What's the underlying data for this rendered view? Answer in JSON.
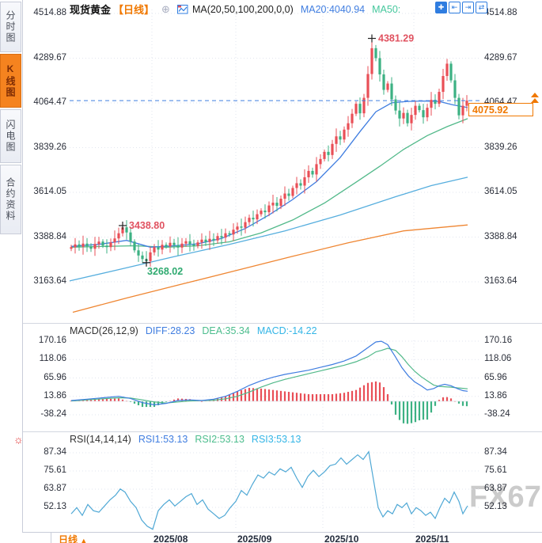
{
  "sidebar": {
    "tabs": [
      {
        "label": "分时图",
        "active": false
      },
      {
        "label": "K线图",
        "active": true
      },
      {
        "label": "闪电图",
        "active": false
      },
      {
        "label": "合约资料",
        "active": false
      }
    ]
  },
  "header": {
    "symbol": "现货黄金",
    "period_tag": "【日线】",
    "add_icon_glyph": "⊕",
    "ma_settings": "MA(20,50,100,200,0,0)",
    "ma20_label": "MA20:4040.94",
    "ma50_label": "MA50:",
    "toolbar_icons": [
      {
        "name": "crosshair-icon",
        "glyph": "✚"
      },
      {
        "name": "scale-left-icon",
        "glyph": "⇤"
      },
      {
        "name": "scale-right-icon",
        "glyph": "⇥"
      },
      {
        "name": "pan-icon",
        "glyph": "⇄"
      }
    ]
  },
  "price_axis": {
    "labels": [
      "4514.88",
      "4289.67",
      "4064.47",
      "3839.26",
      "3614.05",
      "3388.84",
      "3163.64"
    ]
  },
  "current_price_tag": {
    "value": "4075.92"
  },
  "annotations": {
    "peak_high": "4381.29",
    "local_high": "3438.80",
    "local_low": "3268.02"
  },
  "macd": {
    "title": "MACD(26,12,9)",
    "diff_label": "DIFF:28.23",
    "dea_label": "DEA:35.34",
    "macd_label": "MACD:-14.22",
    "axis_labels": [
      "170.16",
      "118.06",
      "65.96",
      "13.86",
      "-38.24"
    ]
  },
  "rsi": {
    "title": "RSI(14,14,14)",
    "rsi1_label": "RSI1:53.13",
    "rsi2_label": "RSI2:53.13",
    "rsi3_label": "RSI3:53.13",
    "axis_labels": [
      "87.34",
      "75.61",
      "63.87",
      "52.13"
    ]
  },
  "bottom": {
    "period_label": "日线",
    "arrow": "▲",
    "date_labels": [
      "2025/08",
      "2025/09",
      "2025/10",
      "2025/11"
    ]
  },
  "settings_icon_glyph": "☼",
  "watermark": "FX678",
  "colors": {
    "up_candle": "#e94f57",
    "down_candle": "#3cb183",
    "ma20": "#3f7de0",
    "ma50": "#52b98a",
    "ma100": "#56aede",
    "ma200": "#ef8632",
    "diff_line": "#3f7de0",
    "dea_line": "#52b98a",
    "rsi_line": "#4fa8d5",
    "accent_orange": "#f07800",
    "annotation_red": "#e05260",
    "annotation_green": "#2faa70",
    "grid": "#e2e6ef",
    "dashed_price_line": "#3f7de0"
  },
  "chart_data": {
    "type": "candlestick+indicators",
    "title": "现货黄金 日线",
    "x_tick_labels": [
      "2025/08",
      "2025/09",
      "2025/10",
      "2025/11"
    ],
    "x_gridlines": [
      192,
      298,
      408,
      523
    ],
    "main": {
      "ylim": [
        3163.64,
        4514.88
      ],
      "x_start": 90,
      "x_step": 5,
      "closes": [
        3338,
        3352,
        3340,
        3356,
        3342,
        3330,
        3354,
        3366,
        3346,
        3338,
        3362,
        3382,
        3408,
        3438,
        3412,
        3366,
        3322,
        3296,
        3278,
        3268,
        3312,
        3338,
        3326,
        3350,
        3342,
        3360,
        3348,
        3336,
        3356,
        3368,
        3352,
        3344,
        3362,
        3376,
        3364,
        3380,
        3372,
        3394,
        3386,
        3408,
        3402,
        3426,
        3442,
        3436,
        3464,
        3486,
        3478,
        3504,
        3522,
        3514,
        3548,
        3562,
        3546,
        3582,
        3608,
        3596,
        3636,
        3660,
        3648,
        3690,
        3722,
        3704,
        3756,
        3782,
        3818,
        3802,
        3858,
        3896,
        3880,
        3930,
        3962,
        4010,
        4060,
        4012,
        4090,
        4210,
        4340,
        4290,
        4208,
        4130,
        4162,
        4082,
        4026,
        3986,
        4014,
        3962,
        4004,
        4050,
        4028,
        3992,
        4040,
        4080,
        4060,
        4120,
        4200,
        4262,
        4178,
        4090,
        4002,
        4050,
        4075.92
      ],
      "marked_points": [
        {
          "index": 13,
          "kind": "high",
          "value": 3438.8,
          "label": "3438.80"
        },
        {
          "index": 19,
          "kind": "low",
          "value": 3268.02,
          "label": "3268.02"
        },
        {
          "index": 76,
          "kind": "high",
          "value": 4381.29,
          "label": "4381.29"
        }
      ],
      "current_price": 4075.92,
      "ma20": [
        [
          90,
          3342
        ],
        [
          125,
          3352
        ],
        [
          160,
          3372
        ],
        [
          190,
          3338
        ],
        [
          220,
          3345
        ],
        [
          250,
          3355
        ],
        [
          280,
          3382
        ],
        [
          310,
          3432
        ],
        [
          340,
          3500
        ],
        [
          370,
          3578
        ],
        [
          400,
          3668
        ],
        [
          430,
          3790
        ],
        [
          455,
          3920
        ],
        [
          475,
          4020
        ],
        [
          495,
          4065
        ],
        [
          515,
          4072
        ],
        [
          535,
          4074
        ],
        [
          555,
          4072
        ],
        [
          572,
          4055
        ],
        [
          591,
          4040.94
        ]
      ],
      "ma50": [
        [
          90,
          3338
        ],
        [
          130,
          3342
        ],
        [
          170,
          3345
        ],
        [
          210,
          3338
        ],
        [
          250,
          3345
        ],
        [
          290,
          3365
        ],
        [
          330,
          3410
        ],
        [
          370,
          3475
        ],
        [
          410,
          3560
        ],
        [
          450,
          3665
        ],
        [
          480,
          3745
        ],
        [
          510,
          3830
        ],
        [
          540,
          3900
        ],
        [
          565,
          3945
        ],
        [
          591,
          3985
        ]
      ],
      "ma100": [
        [
          88,
          3168
        ],
        [
          150,
          3225
        ],
        [
          220,
          3290
        ],
        [
          290,
          3352
        ],
        [
          360,
          3420
        ],
        [
          430,
          3500
        ],
        [
          500,
          3592
        ],
        [
          545,
          3648
        ],
        [
          591,
          3690
        ]
      ],
      "ma200": [
        [
          92,
          3010
        ],
        [
          160,
          3082
        ],
        [
          230,
          3152
        ],
        [
          300,
          3222
        ],
        [
          370,
          3292
        ],
        [
          440,
          3360
        ],
        [
          510,
          3420
        ],
        [
          591,
          3450
        ]
      ]
    },
    "macd": {
      "params": [
        26,
        12,
        9
      ],
      "diff_last": 28.23,
      "dea_last": 35.34,
      "macd_last": -14.22,
      "hist_rule": "2*(diff-dea)",
      "diff": [
        [
          90,
          2
        ],
        [
          110,
          6
        ],
        [
          130,
          10
        ],
        [
          150,
          14
        ],
        [
          165,
          8
        ],
        [
          180,
          -4
        ],
        [
          195,
          -10
        ],
        [
          210,
          -6
        ],
        [
          225,
          2
        ],
        [
          240,
          4
        ],
        [
          255,
          2
        ],
        [
          270,
          6
        ],
        [
          285,
          14
        ],
        [
          300,
          28
        ],
        [
          315,
          45
        ],
        [
          330,
          58
        ],
        [
          345,
          68
        ],
        [
          360,
          76
        ],
        [
          375,
          82
        ],
        [
          390,
          88
        ],
        [
          405,
          96
        ],
        [
          420,
          104
        ],
        [
          435,
          114
        ],
        [
          450,
          128
        ],
        [
          465,
          152
        ],
        [
          475,
          168
        ],
        [
          482,
          170
        ],
        [
          490,
          160
        ],
        [
          500,
          125
        ],
        [
          508,
          95
        ],
        [
          516,
          72
        ],
        [
          524,
          55
        ],
        [
          532,
          44
        ],
        [
          540,
          32
        ],
        [
          548,
          36
        ],
        [
          555,
          44
        ],
        [
          562,
          48
        ],
        [
          570,
          44
        ],
        [
          578,
          36
        ],
        [
          585,
          30
        ],
        [
          591,
          28.23
        ]
      ],
      "dea": [
        [
          90,
          1
        ],
        [
          110,
          4
        ],
        [
          130,
          7
        ],
        [
          150,
          10
        ],
        [
          165,
          9
        ],
        [
          180,
          4
        ],
        [
          195,
          -2
        ],
        [
          210,
          -5
        ],
        [
          225,
          -2
        ],
        [
          240,
          1
        ],
        [
          255,
          2
        ],
        [
          270,
          3
        ],
        [
          285,
          7
        ],
        [
          300,
          14
        ],
        [
          315,
          26
        ],
        [
          330,
          40
        ],
        [
          345,
          52
        ],
        [
          360,
          62
        ],
        [
          375,
          70
        ],
        [
          390,
          78
        ],
        [
          405,
          86
        ],
        [
          420,
          94
        ],
        [
          435,
          102
        ],
        [
          450,
          112
        ],
        [
          465,
          126
        ],
        [
          475,
          140
        ],
        [
          482,
          144
        ],
        [
          490,
          150
        ],
        [
          500,
          144
        ],
        [
          508,
          126
        ],
        [
          516,
          104
        ],
        [
          524,
          85
        ],
        [
          532,
          70
        ],
        [
          540,
          58
        ],
        [
          548,
          46
        ],
        [
          555,
          42
        ],
        [
          562,
          41
        ],
        [
          570,
          40
        ],
        [
          578,
          38
        ],
        [
          585,
          36.5
        ],
        [
          591,
          35.34
        ]
      ]
    },
    "rsi": {
      "last": [
        53.13,
        53.13,
        53.13
      ],
      "points": [
        [
          90,
          48
        ],
        [
          97,
          52
        ],
        [
          104,
          47
        ],
        [
          111,
          54
        ],
        [
          118,
          50
        ],
        [
          125,
          49
        ],
        [
          132,
          53
        ],
        [
          139,
          57
        ],
        [
          146,
          60
        ],
        [
          152,
          64
        ],
        [
          158,
          62
        ],
        [
          165,
          56
        ],
        [
          172,
          52
        ],
        [
          179,
          44
        ],
        [
          186,
          40
        ],
        [
          193,
          38
        ],
        [
          200,
          50
        ],
        [
          207,
          54
        ],
        [
          214,
          57
        ],
        [
          221,
          53
        ],
        [
          228,
          56
        ],
        [
          235,
          59
        ],
        [
          242,
          61
        ],
        [
          249,
          54
        ],
        [
          256,
          57
        ],
        [
          263,
          51
        ],
        [
          270,
          48
        ],
        [
          277,
          45
        ],
        [
          284,
          47
        ],
        [
          291,
          52
        ],
        [
          298,
          56
        ],
        [
          305,
          63
        ],
        [
          312,
          60
        ],
        [
          319,
          67
        ],
        [
          326,
          73
        ],
        [
          333,
          71
        ],
        [
          340,
          75
        ],
        [
          347,
          73
        ],
        [
          354,
          77
        ],
        [
          361,
          75
        ],
        [
          368,
          78
        ],
        [
          375,
          71
        ],
        [
          382,
          65
        ],
        [
          389,
          72
        ],
        [
          396,
          76
        ],
        [
          403,
          72
        ],
        [
          410,
          75
        ],
        [
          417,
          79
        ],
        [
          424,
          80
        ],
        [
          431,
          84
        ],
        [
          438,
          80
        ],
        [
          445,
          83
        ],
        [
          452,
          86
        ],
        [
          459,
          83
        ],
        [
          466,
          88
        ],
        [
          472,
          70
        ],
        [
          478,
          52
        ],
        [
          484,
          46
        ],
        [
          490,
          50
        ],
        [
          496,
          48
        ],
        [
          502,
          54
        ],
        [
          508,
          52
        ],
        [
          514,
          55
        ],
        [
          520,
          48
        ],
        [
          526,
          52
        ],
        [
          532,
          50
        ],
        [
          538,
          47
        ],
        [
          544,
          49
        ],
        [
          550,
          45
        ],
        [
          556,
          52
        ],
        [
          562,
          58
        ],
        [
          568,
          55
        ],
        [
          574,
          62
        ],
        [
          580,
          56
        ],
        [
          585,
          48
        ],
        [
          591,
          53.13
        ]
      ]
    }
  }
}
